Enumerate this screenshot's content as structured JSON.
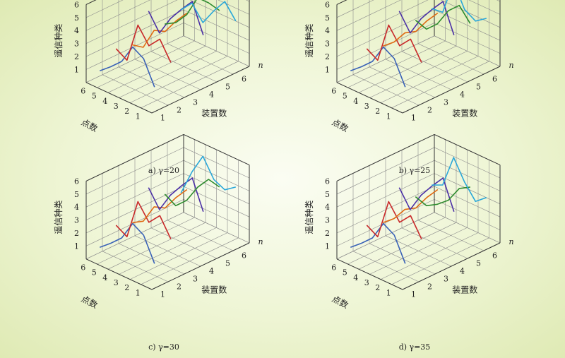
{
  "chart_data": [
    {
      "type": "line3d",
      "caption": "a) γ=20",
      "zlabel": "遥信种类",
      "xlabel": "点数",
      "ylabel": "装置数",
      "ylabel2": "n",
      "x_ticks": [
        "6",
        "5",
        "4",
        "3",
        "2",
        "1"
      ],
      "y_ticks": [
        "1",
        "2",
        "3",
        "4",
        "5",
        "6"
      ],
      "z_ticks": [
        "1",
        "2",
        "3",
        "4",
        "5",
        "6"
      ],
      "zlim": [
        0,
        6
      ],
      "series": [
        {
          "color": "#3a62b7",
          "points": [
            [
              6,
              1.5
            ],
            [
              5,
              3.3
            ],
            [
              4,
              3.8
            ],
            [
              3,
              2.3
            ],
            [
              2,
              1.5
            ],
            [
              1,
              0.8
            ]
          ]
        },
        {
          "color": "#c8292a",
          "points": [
            [
              6,
              2.8
            ],
            [
              5,
              4.2
            ],
            [
              4,
              3.3
            ],
            [
              3,
              4.5
            ],
            [
              2,
              1.4
            ],
            [
              1,
              1.9
            ]
          ]
        },
        {
          "color": "#e06a12",
          "points": [
            [
              6,
              6.3
            ],
            [
              5,
              5.0
            ],
            [
              4,
              3.8
            ],
            [
              3,
              3.5
            ],
            [
              2,
              1.8
            ],
            [
              1,
              1.6
            ]
          ]
        },
        {
          "color": "#4a2fa6",
          "points": [
            [
              6,
              3.7
            ],
            [
              5,
              5.9
            ],
            [
              4,
              4.9
            ],
            [
              3,
              3.8
            ],
            [
              2,
              2.3
            ],
            [
              1,
              3.6
            ]
          ]
        },
        {
          "color": "#2e8b2e",
          "points": [
            [
              6,
              5.0
            ],
            [
              5,
              5.2
            ],
            [
              4,
              5.2
            ],
            [
              3,
              3.5
            ],
            [
              2,
              2.5
            ],
            [
              1,
              2.0
            ]
          ]
        },
        {
          "color": "#2aa7d9",
          "points": [
            [
              6,
              3.6
            ],
            [
              5,
              4.7
            ],
            [
              4,
              3.6
            ],
            [
              3,
              2.3
            ],
            [
              2,
              3.4
            ],
            [
              1,
              2.5
            ]
          ]
        }
      ]
    },
    {
      "type": "line3d",
      "caption": "b) γ=25",
      "zlabel": "遥信种类",
      "xlabel": "点数",
      "ylabel": "装置数",
      "ylabel2": "n",
      "x_ticks": [
        "6",
        "5",
        "4",
        "3",
        "2",
        "1"
      ],
      "y_ticks": [
        "1",
        "2",
        "3",
        "4",
        "5",
        "6"
      ],
      "z_ticks": [
        "1",
        "2",
        "3",
        "4",
        "5",
        "6"
      ],
      "zlim": [
        0,
        6
      ],
      "series": [
        {
          "color": "#3a62b7",
          "points": [
            [
              6,
              1.5
            ],
            [
              5,
              3.3
            ],
            [
              4,
              3.8
            ],
            [
              3,
              2.3
            ],
            [
              2,
              1.5
            ],
            [
              1,
              0.8
            ]
          ]
        },
        {
          "color": "#c8292a",
          "points": [
            [
              6,
              2.8
            ],
            [
              5,
              4.2
            ],
            [
              4,
              3.3
            ],
            [
              3,
              4.5
            ],
            [
              2,
              1.4
            ],
            [
              1,
              1.9
            ]
          ]
        },
        {
          "color": "#e06a12",
          "points": [
            [
              6,
              6.3
            ],
            [
              5,
              5.0
            ],
            [
              4,
              3.8
            ],
            [
              3,
              3.3
            ],
            [
              2,
              2.2
            ],
            [
              1,
              1.5
            ]
          ]
        },
        {
          "color": "#4a2fa6",
          "points": [
            [
              6,
              3.7
            ],
            [
              5,
              5.9
            ],
            [
              4,
              4.9
            ],
            [
              3,
              3.8
            ],
            [
              2,
              2.3
            ],
            [
              1,
              3.6
            ]
          ]
        },
        {
          "color": "#2e8b2e",
          "points": [
            [
              6,
              4.0
            ],
            [
              5,
              5.0
            ],
            [
              4,
              4.2
            ],
            [
              3,
              2.8
            ],
            [
              2,
              2.0
            ],
            [
              1,
              2.3
            ]
          ]
        },
        {
          "color": "#2aa7d9",
          "points": [
            [
              6,
              3.8
            ],
            [
              5,
              3.2
            ],
            [
              4,
              3.7
            ],
            [
              3,
              5.4
            ],
            [
              2,
              2.7
            ],
            [
              1,
              2.6
            ]
          ]
        }
      ]
    },
    {
      "type": "line3d",
      "caption": "c) γ=30",
      "zlabel": "遥信种类",
      "xlabel": "点数",
      "ylabel": "装置数",
      "ylabel2": "n",
      "x_ticks": [
        "6",
        "5",
        "4",
        "3",
        "2",
        "1"
      ],
      "y_ticks": [
        "1",
        "2",
        "3",
        "4",
        "5",
        "6"
      ],
      "z_ticks": [
        "1",
        "2",
        "3",
        "4",
        "5",
        "6"
      ],
      "zlim": [
        0,
        6
      ],
      "series": [
        {
          "color": "#3a62b7",
          "points": [
            [
              6,
              1.5
            ],
            [
              5,
              3.3
            ],
            [
              4,
              3.8
            ],
            [
              3,
              2.3
            ],
            [
              2,
              1.5
            ],
            [
              1,
              0.8
            ]
          ]
        },
        {
          "color": "#c8292a",
          "points": [
            [
              6,
              2.8
            ],
            [
              5,
              4.2
            ],
            [
              4,
              3.3
            ],
            [
              3,
              4.5
            ],
            [
              2,
              1.4
            ],
            [
              1,
              1.9
            ]
          ]
        },
        {
          "color": "#e06a12",
          "points": [
            [
              6,
              6.3
            ],
            [
              5,
              5.0
            ],
            [
              4,
              3.8
            ],
            [
              3,
              3.5
            ],
            [
              2,
              2.0
            ],
            [
              1,
              1.5
            ]
          ]
        },
        {
          "color": "#4a2fa6",
          "points": [
            [
              6,
              3.7
            ],
            [
              5,
              5.9
            ],
            [
              4,
              4.9
            ],
            [
              3,
              3.8
            ],
            [
              2,
              2.3
            ],
            [
              1,
              3.6
            ]
          ]
        },
        {
          "color": "#2e8b2e",
          "points": [
            [
              6,
              5.0
            ],
            [
              5,
              5.2
            ],
            [
              4,
              4.2
            ],
            [
              3,
              2.8
            ],
            [
              2,
              2.0
            ],
            [
              1,
              2.5
            ]
          ]
        },
        {
          "color": "#2aa7d9",
          "points": [
            [
              6,
              4.4
            ],
            [
              5,
              3.8
            ],
            [
              4,
              4.2
            ],
            [
              3,
              5.6
            ],
            [
              2,
              4.0
            ],
            [
              1,
              2.0
            ]
          ]
        }
      ]
    },
    {
      "type": "line3d",
      "caption": "d) γ=35",
      "zlabel": "遥信种类",
      "xlabel": "点数",
      "ylabel": "装置数",
      "ylabel2": "n",
      "x_ticks": [
        "6",
        "5",
        "4",
        "3",
        "2",
        "1"
      ],
      "y_ticks": [
        "1",
        "2",
        "3",
        "4",
        "5",
        "6"
      ],
      "z_ticks": [
        "1",
        "2",
        "3",
        "4",
        "5",
        "6"
      ],
      "zlim": [
        0,
        6
      ],
      "series": [
        {
          "color": "#3a62b7",
          "points": [
            [
              6,
              1.5
            ],
            [
              5,
              3.3
            ],
            [
              4,
              3.8
            ],
            [
              3,
              2.3
            ],
            [
              2,
              1.5
            ],
            [
              1,
              0.8
            ]
          ]
        },
        {
          "color": "#c8292a",
          "points": [
            [
              6,
              2.8
            ],
            [
              5,
              4.2
            ],
            [
              4,
              3.3
            ],
            [
              3,
              4.5
            ],
            [
              2,
              1.4
            ],
            [
              1,
              1.9
            ]
          ]
        },
        {
          "color": "#e06a12",
          "points": [
            [
              6,
              6.3
            ],
            [
              5,
              5.0
            ],
            [
              4,
              3.8
            ],
            [
              3,
              3.3
            ],
            [
              2,
              2.2
            ],
            [
              1,
              1.5
            ]
          ]
        },
        {
          "color": "#4a2fa6",
          "points": [
            [
              6,
              3.7
            ],
            [
              5,
              5.9
            ],
            [
              4,
              4.9
            ],
            [
              3,
              3.8
            ],
            [
              2,
              2.3
            ],
            [
              1,
              3.6
            ]
          ]
        },
        {
          "color": "#2e8b2e",
          "points": [
            [
              6,
              5.0
            ],
            [
              5,
              4.5
            ],
            [
              4,
              3.2
            ],
            [
              3,
              2.5
            ],
            [
              2,
              2.0
            ],
            [
              1,
              2.3
            ]
          ]
        },
        {
          "color": "#2aa7d9",
          "points": [
            [
              6,
              3.6
            ],
            [
              5,
              2.9
            ],
            [
              4,
              4.0
            ],
            [
              3,
              5.5
            ],
            [
              2,
              3.0
            ],
            [
              1,
              2.6
            ]
          ]
        }
      ]
    }
  ]
}
